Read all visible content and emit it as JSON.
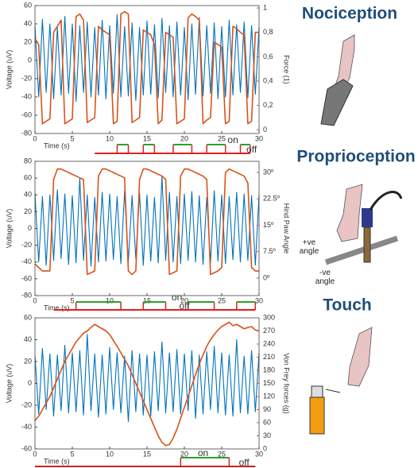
{
  "chart_data": [
    {
      "type": "line",
      "xlabel": "Time (s)",
      "ylabel": "Voltage (uV)",
      "y2label": "Force (1)",
      "x": [
        0,
        0.5,
        1,
        1.5,
        2,
        2.5,
        3,
        3.5,
        4,
        4.5,
        5,
        5.5,
        6,
        6.5,
        7,
        7.5,
        8,
        8.5,
        9,
        9.5,
        10,
        10.5,
        11,
        11.5,
        12,
        12.5,
        13,
        13.5,
        14,
        14.5,
        15,
        15.5,
        16,
        16.5,
        17,
        17.5,
        18,
        18.5,
        19,
        19.5,
        20,
        20.5,
        21,
        21.5,
        22,
        22.5,
        23,
        23.5,
        24,
        24.5,
        25,
        25.5,
        26,
        26.5,
        27,
        27.5,
        28,
        28.5,
        29,
        29.5,
        30
      ],
      "series": [
        {
          "color": "#0072bd",
          "values": [
            38,
            -40,
            45,
            -35,
            40,
            -42,
            36,
            -38,
            48,
            -36,
            40,
            -45,
            38,
            -35,
            42,
            -40,
            36,
            -38,
            44,
            -42,
            38,
            -36,
            50,
            -40,
            37,
            -39,
            41,
            -44,
            36,
            -38,
            43,
            -37,
            39,
            -41,
            46,
            -35,
            38,
            -40,
            42,
            -38,
            36,
            -43,
            40,
            -37,
            47,
            -39,
            38,
            -36,
            41,
            -42,
            37,
            -40,
            44,
            -38,
            39,
            -35,
            42,
            -41,
            38,
            -37,
            36
          ]
        },
        {
          "color": "#d95319",
          "axis": "y2",
          "values": [
            0.75,
            0.7,
            0.05,
            0.07,
            0.09,
            0.8,
            0.85,
            0.9,
            0.05,
            0.07,
            0.09,
            0.93,
            0.95,
            0.9,
            0.06,
            0.08,
            0.1,
            0.85,
            0.82,
            0.8,
            0.78,
            0.05,
            0.07,
            0.95,
            0.97,
            0.95,
            0.06,
            0.08,
            0.1,
            0.82,
            0.8,
            0.78,
            0.7,
            0.05,
            0.08,
            0.8,
            0.78,
            0.76,
            0.05,
            0.07,
            0.09,
            0.92,
            0.95,
            0.93,
            0.9,
            0.05,
            0.08,
            0.1,
            0.72,
            0.7,
            0.68,
            0.05,
            0.07,
            0.85,
            0.83,
            0.8,
            0.78,
            0.05,
            0.07,
            0.8,
            0.8
          ]
        }
      ],
      "xlim": [
        0,
        30
      ],
      "xticks": [
        0,
        5,
        10,
        15,
        20,
        25,
        30
      ],
      "ylim": [
        -80,
        60
      ],
      "yticks": [
        -80,
        -60,
        -40,
        -20,
        0,
        20,
        40,
        60
      ],
      "y2lim": [
        -0.03,
        1.02
      ],
      "y2ticks": [
        0,
        {
          "value": 0.2,
          "label": "0,2"
        },
        {
          "value": 0.4,
          "label": "0,4"
        },
        {
          "value": 0.6,
          "label": "0,6"
        },
        {
          "value": 0.8,
          "label": "0,8"
        },
        1
      ],
      "stimulus": {
        "on": "on",
        "off": "off",
        "span": [
          8,
          28.8
        ],
        "on_intervals": [
          [
            11,
            12.5
          ],
          [
            14.5,
            16
          ],
          [
            18.5,
            21
          ],
          [
            23,
            25.5
          ],
          [
            27.5,
            28.8
          ]
        ]
      }
    },
    {
      "type": "line",
      "xlabel": "Time (s)",
      "ylabel": "Voltage (uV)",
      "y2label": "Hind Paw Angle",
      "x": [
        0,
        0.5,
        1,
        1.5,
        2,
        2.5,
        3,
        3.5,
        4,
        4.5,
        5,
        5.5,
        6,
        6.5,
        7,
        7.5,
        8,
        8.5,
        9,
        9.5,
        10,
        10.5,
        11,
        11.5,
        12,
        12.5,
        13,
        13.5,
        14,
        14.5,
        15,
        15.5,
        16,
        16.5,
        17,
        17.5,
        18,
        18.5,
        19,
        19.5,
        20,
        20.5,
        21,
        21.5,
        22,
        22.5,
        23,
        23.5,
        24,
        24.5,
        25,
        25.5,
        26,
        26.5,
        27,
        27.5,
        28,
        28.5,
        29,
        29.5,
        30
      ],
      "series": [
        {
          "color": "#0072bd",
          "values": [
            42,
            -40,
            38,
            -44,
            40,
            -38,
            46,
            -36,
            41,
            -43,
            39,
            -41,
            60,
            -38,
            40,
            -45,
            37,
            -40,
            43,
            -39,
            41,
            -37,
            38,
            -42,
            45,
            -40,
            39,
            -36,
            42,
            -44,
            40,
            -39,
            37,
            -41,
            62,
            -38,
            43,
            -40,
            38,
            -42,
            41,
            -38,
            44,
            -40,
            39,
            -43,
            37,
            -41,
            45,
            -39,
            40,
            -42,
            38,
            -37,
            43,
            -40,
            41,
            -38,
            39,
            -44,
            40
          ]
        },
        {
          "color": "#d95319",
          "axis": "y2",
          "values": [
            4,
            3,
            2,
            2,
            2,
            28,
            31,
            31,
            30.5,
            30,
            29.5,
            29,
            28.5,
            28,
            1,
            1.5,
            2,
            29,
            31,
            31,
            30.5,
            30,
            29.5,
            29,
            28.5,
            2,
            1,
            2,
            28,
            31,
            31,
            30.5,
            30,
            29.5,
            29,
            28,
            1,
            1.5,
            2,
            29,
            31,
            31,
            30.5,
            30,
            29.5,
            29,
            28,
            1,
            1.5,
            2,
            3,
            30,
            31,
            30.5,
            30,
            29.5,
            29,
            27,
            3,
            2,
            2
          ]
        }
      ],
      "xlim": [
        0,
        30
      ],
      "xticks": [
        0,
        5,
        10,
        15,
        20,
        25,
        30
      ],
      "ylim": [
        -80,
        80
      ],
      "yticks": [
        -80,
        -60,
        -40,
        -20,
        0,
        20,
        40,
        60,
        80
      ],
      "y2lim": [
        -5,
        33.2
      ],
      "y2ticks": [
        {
          "value": 0,
          "label": "0º"
        },
        {
          "value": 7.5,
          "label": "7.5º"
        },
        {
          "value": 15,
          "label": "15º"
        },
        {
          "value": 22.5,
          "label": "22.5º"
        },
        {
          "value": 30,
          "label": "30º"
        }
      ],
      "stimulus": {
        "on": "on",
        "off": "off",
        "span": [
          2.5,
          29.5
        ],
        "on_intervals": [
          [
            5.5,
            11.5
          ],
          [
            14.5,
            17.5
          ],
          [
            20.5,
            24
          ],
          [
            27,
            29.5
          ]
        ]
      }
    },
    {
      "type": "line",
      "xlabel": "Time (s)",
      "ylabel": "Voltage (uV)",
      "y2label": "Von Frey forces (g)",
      "x": [
        0,
        0.5,
        1,
        1.5,
        2,
        2.5,
        3,
        3.5,
        4,
        4.5,
        5,
        5.5,
        6,
        6.5,
        7,
        7.5,
        8,
        8.5,
        9,
        9.5,
        10,
        10.5,
        11,
        11.5,
        12,
        12.5,
        13,
        13.5,
        14,
        14.5,
        15,
        15.5,
        16,
        16.5,
        17,
        17.5,
        18,
        18.5,
        19,
        19.5,
        20,
        20.5,
        21,
        21.5,
        22,
        22.5,
        23,
        23.5,
        24,
        24.5,
        25,
        25.5,
        26,
        26.5,
        27,
        27.5,
        28,
        28.5,
        29,
        29.5,
        30
      ],
      "series": [
        {
          "color": "#0072bd",
          "values": [
            25,
            -28,
            32,
            -24,
            27,
            -30,
            26,
            -25,
            35,
            -27,
            28,
            -26,
            30,
            -29,
            45,
            -25,
            27,
            -31,
            26,
            -28,
            33,
            -24,
            28,
            -27,
            25,
            -35,
            30,
            -26,
            27,
            -29,
            26,
            -30,
            29,
            -25,
            38,
            -27,
            28,
            -26,
            31,
            -28,
            27,
            -25,
            30,
            -32,
            26,
            -28,
            29,
            -24,
            34,
            -27,
            28,
            -29,
            26,
            -30,
            40,
            -27,
            25,
            -28,
            30,
            -26,
            28
          ]
        },
        {
          "color": "#d95319",
          "axis": "y2",
          "values": [
            65,
            75,
            90,
            105,
            120,
            140,
            160,
            180,
            200,
            215,
            230,
            245,
            255,
            265,
            270,
            278,
            285,
            280,
            275,
            270,
            262,
            248,
            235,
            220,
            205,
            190,
            170,
            150,
            130,
            110,
            90,
            70,
            50,
            30,
            15,
            8,
            10,
            25,
            45,
            70,
            95,
            120,
            145,
            170,
            195,
            215,
            235,
            250,
            262,
            272,
            280,
            285,
            290,
            282,
            285,
            280,
            275,
            278,
            280,
            272,
            270
          ]
        }
      ],
      "xlim": [
        0,
        30
      ],
      "xticks": [
        0,
        5,
        10,
        15,
        20,
        25,
        30
      ],
      "ylim": [
        -60,
        60
      ],
      "yticks": [
        -60,
        -40,
        -20,
        0,
        20,
        40,
        60
      ],
      "y2lim": [
        0,
        300
      ],
      "y2ticks": [
        0,
        30,
        60,
        90,
        120,
        150,
        180,
        210,
        240,
        270,
        300
      ],
      "stimulus": {
        "on": "on",
        "off": "off",
        "span": [
          0,
          29.5
        ],
        "on_intervals": [
          [
            19.5,
            26
          ]
        ]
      }
    }
  ],
  "panels": {
    "titles": [
      "Nociception",
      "Proprioception",
      "Touch"
    ],
    "angle_pos": "+ve angle",
    "angle_neg": "-ve angle"
  }
}
